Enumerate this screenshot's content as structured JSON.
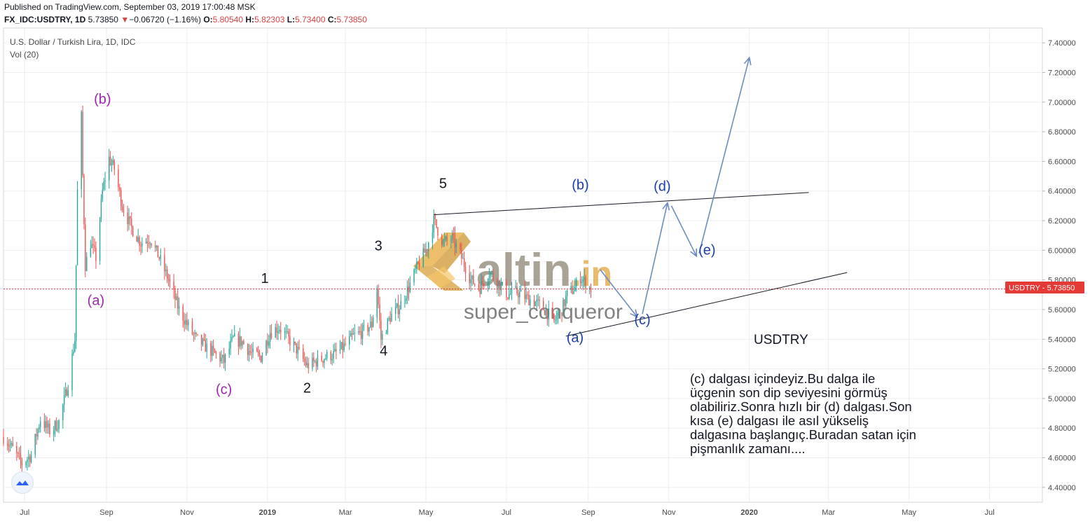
{
  "header": {
    "published": "Published on TradingView.com, September 03, 2019 17:00:48 MSK",
    "symbol": "FX_IDC:USDTRY, 1D",
    "last": "5.73850",
    "change_arrow": "▼",
    "change": "−0.06720 (−1.16%)",
    "o_label": "O:",
    "o": "5.80540",
    "h_label": "H:",
    "h": "5.82303",
    "l_label": "L:",
    "l": "5.73400",
    "c_label": "C:",
    "c": "5.73850"
  },
  "legend": {
    "title": "U.S. Dollar / Turkish Lira, 1D, IDC",
    "volume": "Vol (20)"
  },
  "price_tag": {
    "symbol": "USDTRY",
    "value": "5.73850"
  },
  "watermark": {
    "brand_main": "altin",
    "brand_suffix": ".in",
    "author": "super_conqueror"
  },
  "annotations": {
    "ticker": "USDTRY",
    "comment": [
      "(c) dalgası içindeyiz.Bu dalga ile",
      "üçgenin son dip seviyesini görmüş",
      "olabiliriz.Sonra hızlı bir (d) dalgası.Son",
      "kısa (e) dalgası ile asıl yükseliş",
      "dalgasına başlangıç.Buradan satan için",
      "pişmanlık zamanı...."
    ]
  },
  "colors": {
    "up": "#26a69a",
    "down": "#ef5350",
    "purple": "#9c27b0",
    "blue": "#1e3ea8",
    "arrow": "#6b8cc0",
    "price_line": "#e53935",
    "grid": "#e9edf2"
  },
  "chart_data": {
    "type": "candlestick",
    "title": "U.S. Dollar / Turkish Lira, 1D, IDC",
    "x_range": [
      "2018-06-15",
      "2020-08-10"
    ],
    "ylim": [
      4.3,
      7.5
    ],
    "y_ticks": [
      "4.40000",
      "4.60000",
      "4.80000",
      "5.00000",
      "5.20000",
      "5.40000",
      "5.60000",
      "5.80000",
      "6.00000",
      "6.20000",
      "6.40000",
      "6.60000",
      "6.80000",
      "7.00000",
      "7.20000",
      "7.40000"
    ],
    "x_ticks": [
      {
        "date": "2018-07-01",
        "label": "Jul"
      },
      {
        "date": "2018-09-01",
        "label": "Sep"
      },
      {
        "date": "2018-11-01",
        "label": "Nov"
      },
      {
        "date": "2019-01-01",
        "label": "2019"
      },
      {
        "date": "2019-03-01",
        "label": "Mar"
      },
      {
        "date": "2019-05-01",
        "label": "May"
      },
      {
        "date": "2019-07-01",
        "label": "Jul"
      },
      {
        "date": "2019-09-01",
        "label": "Sep"
      },
      {
        "date": "2019-11-01",
        "label": "Nov"
      },
      {
        "date": "2020-01-01",
        "label": "2020"
      },
      {
        "date": "2020-03-01",
        "label": "Mar"
      },
      {
        "date": "2020-05-01",
        "label": "May"
      },
      {
        "date": "2020-07-01",
        "label": "Jul"
      }
    ],
    "grid": true,
    "last_price": 5.7385,
    "price_path": [
      [
        "2018-06-15",
        4.74
      ],
      [
        "2018-06-22",
        4.66
      ],
      [
        "2018-06-29",
        4.56
      ],
      [
        "2018-07-06",
        4.62
      ],
      [
        "2018-07-13",
        4.86
      ],
      [
        "2018-07-20",
        4.78
      ],
      [
        "2018-07-27",
        4.84
      ],
      [
        "2018-08-03",
        5.1
      ],
      [
        "2018-08-08",
        5.4
      ],
      [
        "2018-08-10",
        6.4
      ],
      [
        "2018-08-13",
        6.9
      ],
      [
        "2018-08-14",
        6.5
      ],
      [
        "2018-08-16",
        5.9
      ],
      [
        "2018-08-20",
        6.05
      ],
      [
        "2018-08-24",
        5.95
      ],
      [
        "2018-08-29",
        6.4
      ],
      [
        "2018-09-03",
        6.62
      ],
      [
        "2018-09-07",
        6.55
      ],
      [
        "2018-09-13",
        6.3
      ],
      [
        "2018-09-20",
        6.15
      ],
      [
        "2018-09-27",
        6.05
      ],
      [
        "2018-10-04",
        6.08
      ],
      [
        "2018-10-11",
        5.95
      ],
      [
        "2018-10-18",
        5.8
      ],
      [
        "2018-10-25",
        5.62
      ],
      [
        "2018-11-01",
        5.5
      ],
      [
        "2018-11-08",
        5.4
      ],
      [
        "2018-11-15",
        5.35
      ],
      [
        "2018-11-22",
        5.3
      ],
      [
        "2018-11-29",
        5.25
      ],
      [
        "2018-12-06",
        5.4
      ],
      [
        "2018-12-13",
        5.38
      ],
      [
        "2018-12-20",
        5.3
      ],
      [
        "2018-12-27",
        5.28
      ],
      [
        "2019-01-03",
        5.45
      ],
      [
        "2019-01-10",
        5.48
      ],
      [
        "2019-01-17",
        5.4
      ],
      [
        "2019-01-24",
        5.32
      ],
      [
        "2019-01-31",
        5.22
      ],
      [
        "2019-02-07",
        5.25
      ],
      [
        "2019-02-14",
        5.28
      ],
      [
        "2019-02-21",
        5.3
      ],
      [
        "2019-02-28",
        5.35
      ],
      [
        "2019-03-07",
        5.42
      ],
      [
        "2019-03-14",
        5.45
      ],
      [
        "2019-03-21",
        5.5
      ],
      [
        "2019-03-25",
        5.75
      ],
      [
        "2019-03-28",
        5.4
      ],
      [
        "2019-04-04",
        5.55
      ],
      [
        "2019-04-11",
        5.62
      ],
      [
        "2019-04-18",
        5.75
      ],
      [
        "2019-04-25",
        5.9
      ],
      [
        "2019-05-02",
        6.02
      ],
      [
        "2019-05-07",
        6.2
      ],
      [
        "2019-05-14",
        6.05
      ],
      [
        "2019-05-21",
        6.08
      ],
      [
        "2019-05-28",
        5.95
      ],
      [
        "2019-06-04",
        5.8
      ],
      [
        "2019-06-11",
        5.75
      ],
      [
        "2019-06-18",
        5.85
      ],
      [
        "2019-06-25",
        5.78
      ],
      [
        "2019-07-02",
        5.7
      ],
      [
        "2019-07-09",
        5.72
      ],
      [
        "2019-07-16",
        5.68
      ],
      [
        "2019-07-23",
        5.65
      ],
      [
        "2019-07-30",
        5.6
      ],
      [
        "2019-08-06",
        5.52
      ],
      [
        "2019-08-12",
        5.6
      ],
      [
        "2019-08-16",
        5.7
      ],
      [
        "2019-08-22",
        5.75
      ],
      [
        "2019-08-26",
        5.82
      ],
      [
        "2019-09-03",
        5.7385
      ]
    ],
    "trendlines": [
      {
        "from": [
          "2019-05-07",
          6.24
        ],
        "to": [
          "2020-02-15",
          6.39
        ]
      },
      {
        "from": [
          "2019-08-15",
          5.42
        ],
        "to": [
          "2020-03-15",
          5.85
        ]
      }
    ],
    "forecast_arrows": [
      {
        "from": [
          "2019-09-10",
          5.87
        ],
        "to": [
          "2019-10-08",
          5.55
        ]
      },
      {
        "from": [
          "2019-10-12",
          5.57
        ],
        "to": [
          "2019-10-31",
          6.32
        ]
      },
      {
        "from": [
          "2019-11-03",
          6.3
        ],
        "to": [
          "2019-11-22",
          5.96
        ]
      },
      {
        "from": [
          "2019-11-24",
          5.98
        ],
        "to": [
          "2020-01-01",
          7.3
        ]
      }
    ],
    "wave_labels": [
      {
        "text": "(b)",
        "date": "2018-08-29",
        "price": 6.99,
        "color": "purple"
      },
      {
        "text": "(a)",
        "date": "2018-08-24",
        "price": 5.63,
        "color": "purple"
      },
      {
        "text": "(c)",
        "date": "2018-11-29",
        "price": 5.03,
        "color": "purple"
      },
      {
        "text": "1",
        "date": "2018-12-30",
        "price": 5.78,
        "color": "black"
      },
      {
        "text": "2",
        "date": "2019-01-31",
        "price": 5.04,
        "color": "black"
      },
      {
        "text": "3",
        "date": "2019-03-26",
        "price": 6.0,
        "color": "black"
      },
      {
        "text": "4",
        "date": "2019-03-30",
        "price": 5.29,
        "color": "black"
      },
      {
        "text": "5",
        "date": "2019-05-14",
        "price": 6.42,
        "color": "black"
      },
      {
        "text": "(b)",
        "date": "2019-08-26",
        "price": 6.41,
        "color": "blue"
      },
      {
        "text": "(d)",
        "date": "2019-10-27",
        "price": 6.4,
        "color": "blue"
      },
      {
        "text": "(e)",
        "date": "2019-11-30",
        "price": 5.97,
        "color": "blue"
      },
      {
        "text": "(c)",
        "date": "2019-10-12",
        "price": 5.5,
        "color": "blue"
      },
      {
        "text": "(a)",
        "date": "2019-08-22",
        "price": 5.38,
        "color": "blue"
      }
    ]
  }
}
